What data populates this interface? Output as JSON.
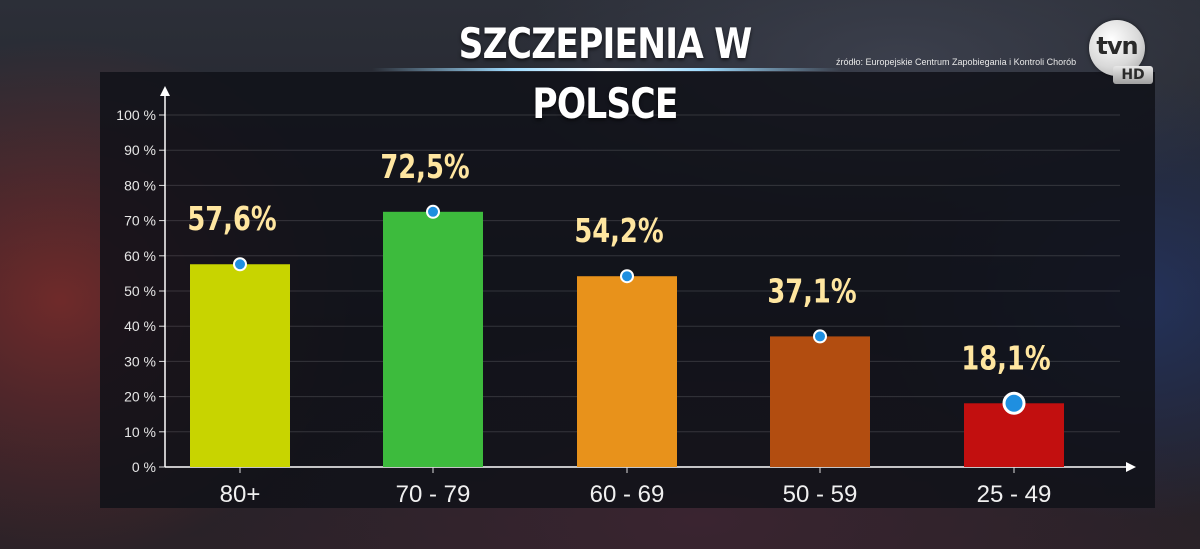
{
  "header": {
    "title": "SZCZEPIENIA W POLSCE",
    "source": "źródło: Europejskie Centrum Zapobiegania i Kontroli Chorób"
  },
  "logo": {
    "main": "tvn",
    "badge": "HD"
  },
  "chart_data": {
    "type": "bar",
    "title": "SZCZEPIENIA W POLSCE",
    "categories": [
      "80+",
      "70 - 79",
      "60 - 69",
      "50 - 59",
      "25 - 49"
    ],
    "values": [
      57.6,
      72.5,
      54.2,
      37.1,
      18.1
    ],
    "value_labels": [
      "57,6%",
      "72,5%",
      "54,2%",
      "37,1%",
      "18,1%"
    ],
    "bar_colors": [
      "#c8d400",
      "#3dbb3d",
      "#e8921b",
      "#b24d10",
      "#c20f0f"
    ],
    "ylim": [
      0,
      100
    ],
    "yticks": [
      "0 %",
      "10 %",
      "20 %",
      "30 %",
      "40 %",
      "50 %",
      "60 %",
      "70 %",
      "80 %",
      "90 %",
      "100 %"
    ],
    "grid": true,
    "xlabel": "",
    "ylabel": ""
  }
}
